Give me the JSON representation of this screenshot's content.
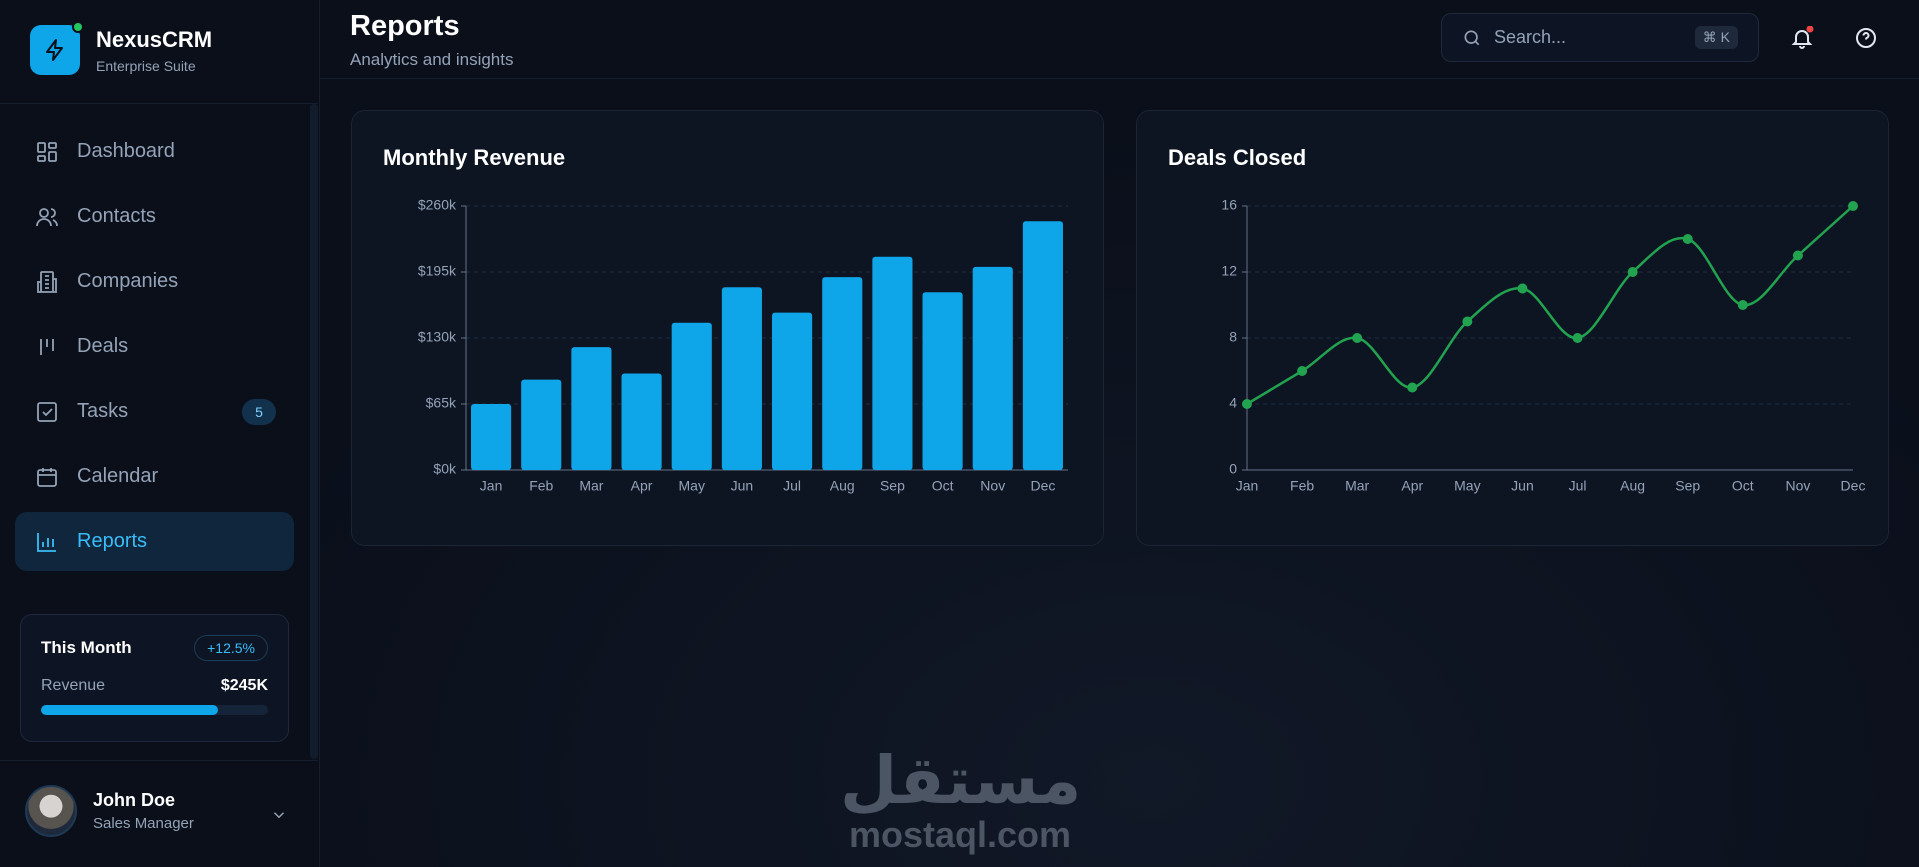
{
  "sidebar": {
    "brand": "NexusCRM",
    "tagline": "Enterprise Suite",
    "nav": [
      {
        "label": "Dashboard"
      },
      {
        "label": "Contacts"
      },
      {
        "label": "Companies"
      },
      {
        "label": "Deals"
      },
      {
        "label": "Tasks",
        "badge": "5"
      },
      {
        "label": "Calendar"
      },
      {
        "label": "Reports"
      }
    ],
    "summary": {
      "title": "This Month",
      "change": "+12.5%",
      "label": "Revenue",
      "value": "$245K"
    },
    "user": {
      "name": "John Doe",
      "role": "Sales Manager"
    }
  },
  "header": {
    "title": "Reports",
    "subtitle": "Analytics and insights",
    "search_placeholder": "Search...",
    "shortcut": "⌘ K"
  },
  "chart_data": [
    {
      "type": "bar",
      "title": "Monthly Revenue",
      "categories": [
        "Jan",
        "Feb",
        "Mar",
        "Apr",
        "May",
        "Jun",
        "Jul",
        "Aug",
        "Sep",
        "Oct",
        "Nov",
        "Dec"
      ],
      "values": [
        65000,
        89000,
        121000,
        95000,
        145000,
        180000,
        155000,
        190000,
        210000,
        175000,
        200000,
        245000
      ],
      "color": "#0ea5e9",
      "ylim": [
        0,
        260000
      ],
      "yticks": [
        {
          "value": 0,
          "label": "$0k"
        },
        {
          "value": 65000,
          "label": "$65k"
        },
        {
          "value": 130000,
          "label": "$130k"
        },
        {
          "value": 195000,
          "label": "$195k"
        },
        {
          "value": 260000,
          "label": "$260k"
        }
      ],
      "grid": true
    },
    {
      "type": "line",
      "title": "Deals Closed",
      "categories": [
        "Jan",
        "Feb",
        "Mar",
        "Apr",
        "May",
        "Jun",
        "Jul",
        "Aug",
        "Sep",
        "Oct",
        "Nov",
        "Dec"
      ],
      "values": [
        4,
        6,
        8,
        5,
        9,
        11,
        8,
        12,
        14,
        10,
        13,
        16
      ],
      "color": "#22a34f",
      "ylim": [
        0,
        16
      ],
      "yticks": [
        0,
        4,
        8,
        12,
        16
      ],
      "grid": true
    }
  ],
  "watermark": {
    "arabic": "مستقل",
    "latin": "mostaql.com"
  }
}
